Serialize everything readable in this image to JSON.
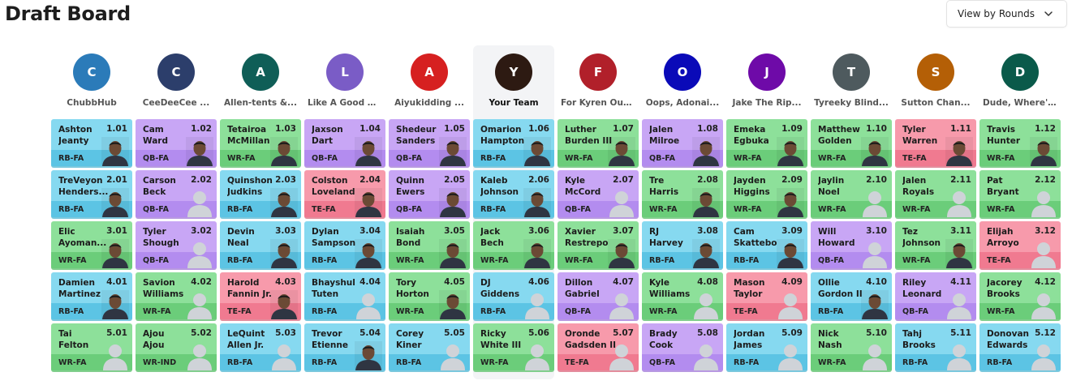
{
  "header": {
    "title": "Draft Board",
    "view_select": "View by Rounds"
  },
  "teams": [
    {
      "initial": "C",
      "name": "ChubbHub",
      "color": "#2b7bb9"
    },
    {
      "initial": "C",
      "name": "CeeDeeCee ...",
      "color": "#2c3e6b"
    },
    {
      "initial": "A",
      "name": "Allen-tents &...",
      "color": "#0f5e57"
    },
    {
      "initial": "L",
      "name": "Like A Good N...",
      "color": "#7a5cc6"
    },
    {
      "initial": "A",
      "name": "Aiyukidding ...",
      "color": "#d62020"
    },
    {
      "initial": "Y",
      "name": "Your Team",
      "color": "#2d1a12"
    },
    {
      "initial": "F",
      "name": "For Kyren Out...",
      "color": "#b1202a"
    },
    {
      "initial": "O",
      "name": "Oops, Adonai...",
      "color": "#0a0ab8"
    },
    {
      "initial": "J",
      "name": "Jake The Rip...",
      "color": "#6e0aa8"
    },
    {
      "initial": "T",
      "name": "Tyreeky Blind...",
      "color": "#4e5a5e"
    },
    {
      "initial": "S",
      "name": "Sutton Chan...",
      "color": "#b45f06"
    },
    {
      "initial": "D",
      "name": "Dude, Where'...",
      "color": "#0a5a4a"
    }
  ],
  "rounds": [
    [
      {
        "first": "Ashton",
        "last": "Jeanty",
        "pick": "1.01",
        "pos": "RB-FA",
        "c": "rb",
        "photo": true
      },
      {
        "first": "Cam",
        "last": "Ward",
        "pick": "1.02",
        "pos": "QB-FA",
        "c": "qb",
        "photo": true
      },
      {
        "first": "Tetairoa",
        "last": "McMillan",
        "pick": "1.03",
        "pos": "WR-FA",
        "c": "wr",
        "photo": true
      },
      {
        "first": "Jaxson",
        "last": "Dart",
        "pick": "1.04",
        "pos": "QB-FA",
        "c": "qb",
        "photo": true
      },
      {
        "first": "Shedeur",
        "last": "Sanders",
        "pick": "1.05",
        "pos": "QB-FA",
        "c": "qb",
        "photo": true
      },
      {
        "first": "Omarion",
        "last": "Hampton",
        "pick": "1.06",
        "pos": "RB-FA",
        "c": "rb",
        "photo": true
      },
      {
        "first": "Luther",
        "last": "Burden III",
        "pick": "1.07",
        "pos": "WR-FA",
        "c": "wr",
        "photo": true
      },
      {
        "first": "Jalen",
        "last": "Milroe",
        "pick": "1.08",
        "pos": "QB-FA",
        "c": "qb",
        "photo": true
      },
      {
        "first": "Emeka",
        "last": "Egbuka",
        "pick": "1.09",
        "pos": "WR-FA",
        "c": "wr",
        "photo": true
      },
      {
        "first": "Matthew",
        "last": "Golden",
        "pick": "1.10",
        "pos": "WR-FA",
        "c": "wr",
        "photo": true
      },
      {
        "first": "Tyler",
        "last": "Warren",
        "pick": "1.11",
        "pos": "TE-FA",
        "c": "te",
        "photo": true
      },
      {
        "first": "Travis",
        "last": "Hunter",
        "pick": "1.12",
        "pos": "WR-FA",
        "c": "wr",
        "photo": true
      }
    ],
    [
      {
        "first": "TreVeyon",
        "last": "Henders...",
        "pick": "2.01",
        "pos": "RB-FA",
        "c": "rb",
        "photo": true
      },
      {
        "first": "Carson",
        "last": "Beck",
        "pick": "2.02",
        "pos": "QB-FA",
        "c": "qb",
        "photo": false
      },
      {
        "first": "Quinshon",
        "last": "Judkins",
        "pick": "2.03",
        "pos": "RB-FA",
        "c": "rb",
        "photo": true
      },
      {
        "first": "Colston",
        "last": "Loveland",
        "pick": "2.04",
        "pos": "TE-FA",
        "c": "te",
        "photo": true
      },
      {
        "first": "Quinn",
        "last": "Ewers",
        "pick": "2.05",
        "pos": "QB-FA",
        "c": "qb",
        "photo": true
      },
      {
        "first": "Kaleb",
        "last": "Johnson",
        "pick": "2.06",
        "pos": "RB-FA",
        "c": "rb",
        "photo": true
      },
      {
        "first": "Kyle",
        "last": "McCord",
        "pick": "2.07",
        "pos": "QB-FA",
        "c": "qb",
        "photo": false
      },
      {
        "first": "Tre",
        "last": "Harris",
        "pick": "2.08",
        "pos": "WR-FA",
        "c": "wr",
        "photo": true
      },
      {
        "first": "Jayden",
        "last": "Higgins",
        "pick": "2.09",
        "pos": "WR-FA",
        "c": "wr",
        "photo": true
      },
      {
        "first": "Jaylin",
        "last": "Noel",
        "pick": "2.10",
        "pos": "WR-FA",
        "c": "wr",
        "photo": false
      },
      {
        "first": "Jalen",
        "last": "Royals",
        "pick": "2.11",
        "pos": "WR-FA",
        "c": "wr",
        "photo": false
      },
      {
        "first": "Pat",
        "last": "Bryant",
        "pick": "2.12",
        "pos": "WR-FA",
        "c": "wr",
        "photo": false
      }
    ],
    [
      {
        "first": "Elic",
        "last": "Ayoman...",
        "pick": "3.01",
        "pos": "WR-FA",
        "c": "wr",
        "photo": true
      },
      {
        "first": "Tyler",
        "last": "Shough",
        "pick": "3.02",
        "pos": "QB-FA",
        "c": "qb",
        "photo": false
      },
      {
        "first": "Devin",
        "last": "Neal",
        "pick": "3.03",
        "pos": "RB-FA",
        "c": "rb",
        "photo": true
      },
      {
        "first": "Dylan",
        "last": "Sampson",
        "pick": "3.04",
        "pos": "RB-FA",
        "c": "rb",
        "photo": true
      },
      {
        "first": "Isaiah",
        "last": "Bond",
        "pick": "3.05",
        "pos": "WR-FA",
        "c": "wr",
        "photo": true
      },
      {
        "first": "Jack",
        "last": "Bech",
        "pick": "3.06",
        "pos": "WR-FA",
        "c": "wr",
        "photo": true
      },
      {
        "first": "Xavier",
        "last": "Restrepo",
        "pick": "3.07",
        "pos": "WR-FA",
        "c": "wr",
        "photo": true
      },
      {
        "first": "RJ",
        "last": "Harvey",
        "pick": "3.08",
        "pos": "RB-FA",
        "c": "rb",
        "photo": true
      },
      {
        "first": "Cam",
        "last": "Skattebo",
        "pick": "3.09",
        "pos": "RB-FA",
        "c": "rb",
        "photo": true
      },
      {
        "first": "Will",
        "last": "Howard",
        "pick": "3.10",
        "pos": "QB-FA",
        "c": "qb",
        "photo": false
      },
      {
        "first": "Tez",
        "last": "Johnson",
        "pick": "3.11",
        "pos": "WR-FA",
        "c": "wr",
        "photo": true
      },
      {
        "first": "Elijah",
        "last": "Arroyo",
        "pick": "3.12",
        "pos": "TE-FA",
        "c": "te",
        "photo": false
      }
    ],
    [
      {
        "first": "Damien",
        "last": "Martinez",
        "pick": "4.01",
        "pos": "RB-FA",
        "c": "rb",
        "photo": true
      },
      {
        "first": "Savion",
        "last": "Williams",
        "pick": "4.02",
        "pos": "WR-FA",
        "c": "wr",
        "photo": false
      },
      {
        "first": "Harold",
        "last": "Fannin Jr.",
        "pick": "4.03",
        "pos": "TE-FA",
        "c": "te",
        "photo": true
      },
      {
        "first": "Bhayshul",
        "last": "Tuten",
        "pick": "4.04",
        "pos": "RB-FA",
        "c": "rb",
        "photo": false
      },
      {
        "first": "Tory",
        "last": "Horton",
        "pick": "4.05",
        "pos": "WR-FA",
        "c": "wr",
        "photo": true
      },
      {
        "first": "DJ",
        "last": "Giddens",
        "pick": "4.06",
        "pos": "RB-FA",
        "c": "rb",
        "photo": false
      },
      {
        "first": "Dillon",
        "last": "Gabriel",
        "pick": "4.07",
        "pos": "QB-FA",
        "c": "qb",
        "photo": false
      },
      {
        "first": "Kyle",
        "last": "Williams",
        "pick": "4.08",
        "pos": "WR-FA",
        "c": "wr",
        "photo": false
      },
      {
        "first": "Mason",
        "last": "Taylor",
        "pick": "4.09",
        "pos": "TE-FA",
        "c": "te",
        "photo": false
      },
      {
        "first": "Ollie",
        "last": "Gordon II",
        "pick": "4.10",
        "pos": "RB-FA",
        "c": "rb",
        "photo": true
      },
      {
        "first": "Riley",
        "last": "Leonard",
        "pick": "4.11",
        "pos": "QB-FA",
        "c": "qb",
        "photo": false
      },
      {
        "first": "Jacorey",
        "last": "Brooks",
        "pick": "4.12",
        "pos": "WR-FA",
        "c": "wr",
        "photo": false
      }
    ],
    [
      {
        "first": "Tai",
        "last": "Felton",
        "pick": "5.01",
        "pos": "WR-FA",
        "c": "wr",
        "photo": false
      },
      {
        "first": "Ajou",
        "last": "Ajou",
        "pick": "5.02",
        "pos": "WR-IND",
        "c": "wr",
        "photo": false
      },
      {
        "first": "LeQuint",
        "last": "Allen Jr.",
        "pick": "5.03",
        "pos": "RB-FA",
        "c": "rb",
        "photo": false
      },
      {
        "first": "Trevor",
        "last": "Etienne",
        "pick": "5.04",
        "pos": "RB-FA",
        "c": "rb",
        "photo": true
      },
      {
        "first": "Corey",
        "last": "Kiner",
        "pick": "5.05",
        "pos": "RB-FA",
        "c": "rb",
        "photo": false
      },
      {
        "first": "Ricky",
        "last": "White III",
        "pick": "5.06",
        "pos": "WR-FA",
        "c": "wr",
        "photo": false
      },
      {
        "first": "Oronde",
        "last": "Gadsden II",
        "pick": "5.07",
        "pos": "TE-FA",
        "c": "te",
        "photo": false
      },
      {
        "first": "Brady",
        "last": "Cook",
        "pick": "5.08",
        "pos": "QB-FA",
        "c": "qb",
        "photo": false
      },
      {
        "first": "Jordan",
        "last": "James",
        "pick": "5.09",
        "pos": "RB-FA",
        "c": "rb",
        "photo": false
      },
      {
        "first": "Nick",
        "last": "Nash",
        "pick": "5.10",
        "pos": "WR-FA",
        "c": "wr",
        "photo": false
      },
      {
        "first": "Tahj",
        "last": "Brooks",
        "pick": "5.11",
        "pos": "RB-FA",
        "c": "rb",
        "photo": false
      },
      {
        "first": "Donovan",
        "last": "Edwards",
        "pick": "5.12",
        "pos": "RB-FA",
        "c": "rb",
        "photo": false
      }
    ]
  ]
}
